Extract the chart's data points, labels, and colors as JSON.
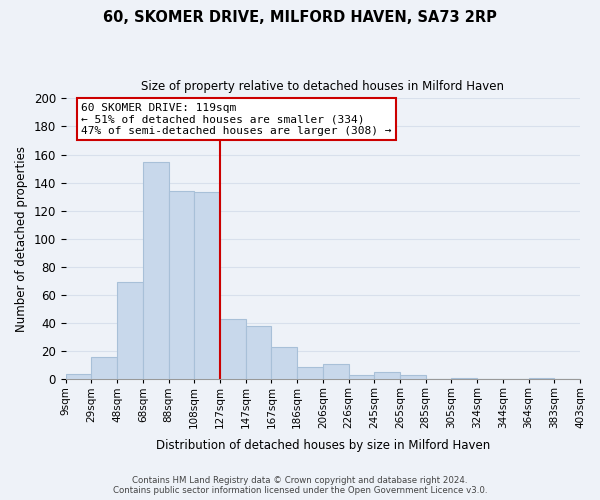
{
  "title": "60, SKOMER DRIVE, MILFORD HAVEN, SA73 2RP",
  "subtitle": "Size of property relative to detached houses in Milford Haven",
  "xlabel": "Distribution of detached houses by size in Milford Haven",
  "ylabel": "Number of detached properties",
  "bar_labels": [
    "9sqm",
    "29sqm",
    "48sqm",
    "68sqm",
    "88sqm",
    "108sqm",
    "127sqm",
    "147sqm",
    "167sqm",
    "186sqm",
    "206sqm",
    "226sqm",
    "245sqm",
    "265sqm",
    "285sqm",
    "305sqm",
    "324sqm",
    "344sqm",
    "364sqm",
    "383sqm",
    "403sqm"
  ],
  "bar_values": [
    4,
    16,
    69,
    155,
    134,
    133,
    43,
    38,
    23,
    9,
    11,
    3,
    5,
    3,
    0,
    1,
    0,
    0,
    1,
    0
  ],
  "bar_color": "#c8d8eb",
  "bar_edge_color": "#a8c0d8",
  "vline_color": "#cc0000",
  "annotation_title": "60 SKOMER DRIVE: 119sqm",
  "annotation_line1": "← 51% of detached houses are smaller (334)",
  "annotation_line2": "47% of semi-detached houses are larger (308) →",
  "annotation_box_color": "#ffffff",
  "annotation_box_edge": "#cc0000",
  "ylim": [
    0,
    200
  ],
  "yticks": [
    0,
    20,
    40,
    60,
    80,
    100,
    120,
    140,
    160,
    180,
    200
  ],
  "footer_line1": "Contains HM Land Registry data © Crown copyright and database right 2024.",
  "footer_line2": "Contains public sector information licensed under the Open Government Licence v3.0.",
  "background_color": "#eef2f8",
  "grid_color": "#d8e0ec",
  "plot_bg_color": "#eef2f8"
}
